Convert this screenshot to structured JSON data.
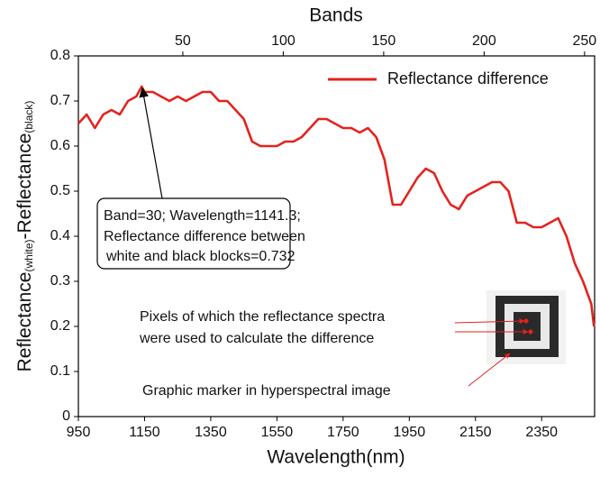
{
  "chart_data": {
    "type": "line",
    "xlabel": "Wavelength(nm)",
    "x2label": "Bands",
    "ylabel_parts": [
      "Reflectance",
      "(white)",
      "-Reflectance",
      "(black)"
    ],
    "x": [
      950,
      975,
      1000,
      1025,
      1050,
      1075,
      1100,
      1125,
      1141.3,
      1150,
      1175,
      1200,
      1225,
      1250,
      1275,
      1300,
      1325,
      1350,
      1375,
      1400,
      1425,
      1450,
      1475,
      1500,
      1525,
      1550,
      1575,
      1600,
      1625,
      1650,
      1675,
      1700,
      1725,
      1750,
      1775,
      1800,
      1825,
      1850,
      1875,
      1900,
      1925,
      1950,
      1975,
      2000,
      2025,
      2050,
      2075,
      2100,
      2125,
      2150,
      2175,
      2200,
      2225,
      2250,
      2275,
      2300,
      2325,
      2350,
      2375,
      2400,
      2425,
      2450,
      2475,
      2500,
      2508
    ],
    "series": [
      {
        "name": "Reflectance difference",
        "color": "#e3231f",
        "values": [
          0.65,
          0.67,
          0.64,
          0.67,
          0.68,
          0.67,
          0.7,
          0.71,
          0.732,
          0.72,
          0.72,
          0.71,
          0.7,
          0.71,
          0.7,
          0.71,
          0.72,
          0.72,
          0.7,
          0.7,
          0.68,
          0.66,
          0.61,
          0.6,
          0.6,
          0.6,
          0.61,
          0.61,
          0.62,
          0.64,
          0.66,
          0.66,
          0.65,
          0.64,
          0.64,
          0.63,
          0.64,
          0.62,
          0.57,
          0.47,
          0.47,
          0.5,
          0.53,
          0.55,
          0.54,
          0.5,
          0.47,
          0.46,
          0.49,
          0.5,
          0.51,
          0.52,
          0.52,
          0.5,
          0.43,
          0.43,
          0.42,
          0.42,
          0.43,
          0.44,
          0.4,
          0.34,
          0.3,
          0.25,
          0.2
        ]
      }
    ],
    "xlim": [
      950,
      2510
    ],
    "xticks": [
      950,
      1150,
      1350,
      1550,
      1750,
      1950,
      2150,
      2350
    ],
    "x2lim": [
      -2,
      255
    ],
    "x2ticks": [
      50,
      100,
      150,
      200,
      250
    ],
    "ylim": [
      0,
      0.8
    ],
    "yticks": [
      0,
      0.1,
      0.2,
      0.3,
      0.4,
      0.5,
      0.6,
      0.7,
      0.8
    ],
    "legend": "upper right",
    "annotations": {
      "peak_box": [
        "Band=30; Wavelength=1141.3;",
        "Reflectance difference between",
        "white and black blocks=0.732"
      ],
      "pixels": [
        "Pixels of which the reflectance spectra",
        "were used to calculate the difference"
      ],
      "marker": "Graphic marker in hyperspectral image"
    }
  }
}
